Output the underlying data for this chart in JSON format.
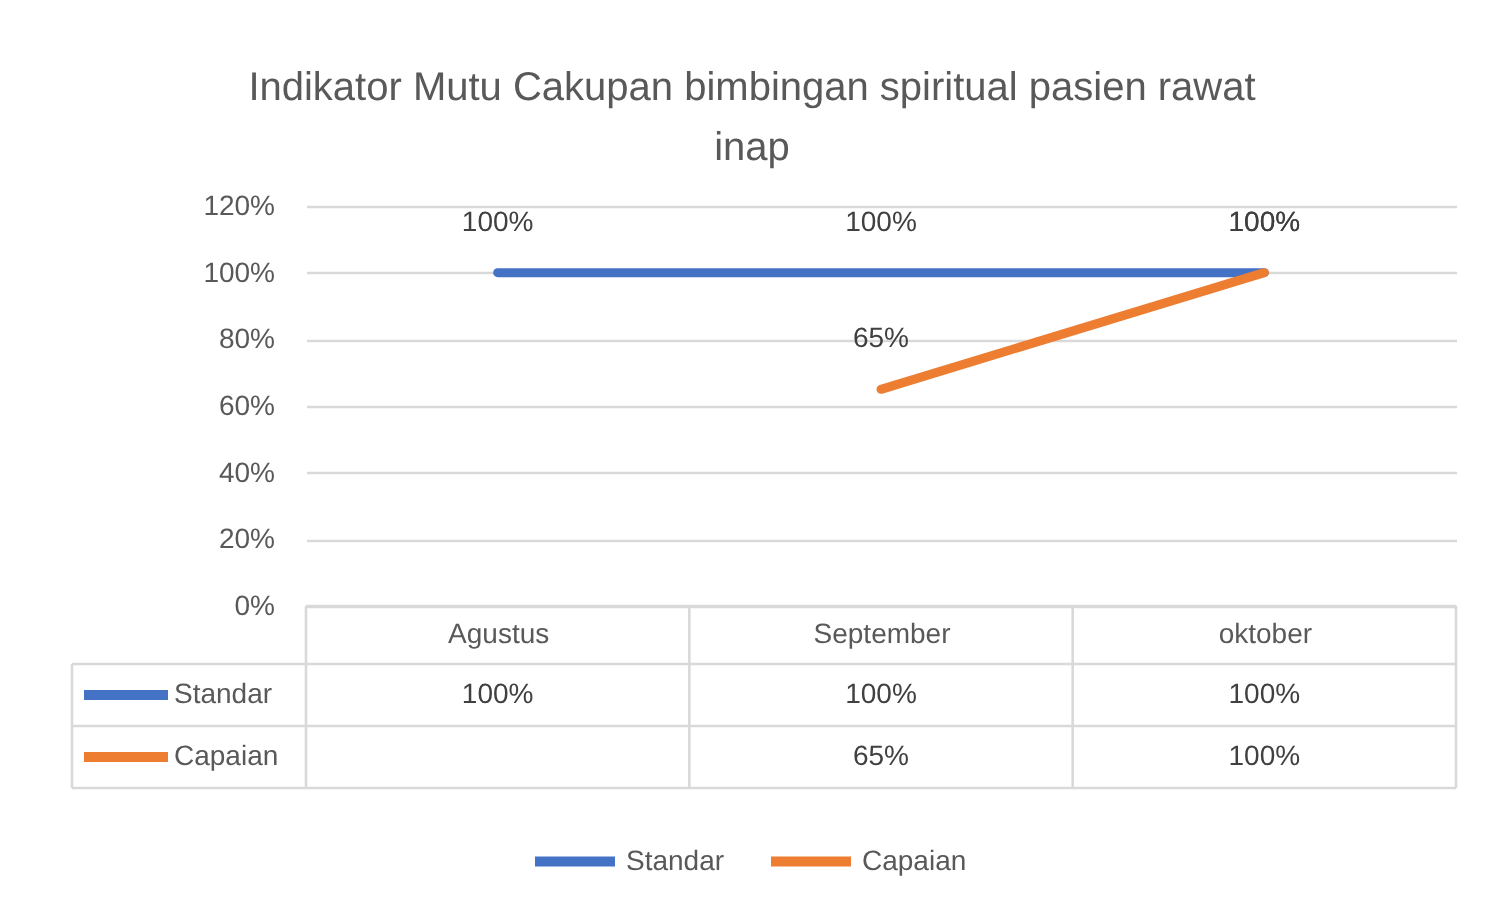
{
  "chart_data": {
    "type": "line",
    "title": "Indikator Mutu Cakupan bimbingan spiritual pasien rawat inap",
    "categories": [
      "Agustus",
      "September",
      "oktober"
    ],
    "series": [
      {
        "name": "Standar",
        "color": "#4472c4",
        "values": [
          100,
          100,
          100
        ],
        "value_labels": [
          "100%",
          "100%",
          "100%"
        ]
      },
      {
        "name": "Capaian",
        "color": "#ed7d31",
        "values": [
          null,
          65,
          100
        ],
        "value_labels": [
          null,
          "65%",
          "100%"
        ]
      }
    ],
    "ylim": [
      0,
      120
    ],
    "yticks": [
      {
        "value": 0,
        "label": "0%"
      },
      {
        "value": 20,
        "label": "20%"
      },
      {
        "value": 40,
        "label": "40%"
      },
      {
        "value": 60,
        "label": "60%"
      },
      {
        "value": 80,
        "label": "80%"
      },
      {
        "value": 100,
        "label": "100%"
      },
      {
        "value": 120,
        "label": "120%"
      }
    ],
    "grid": "y",
    "legend": "bottom",
    "marker": "none",
    "line_style": "solid"
  }
}
